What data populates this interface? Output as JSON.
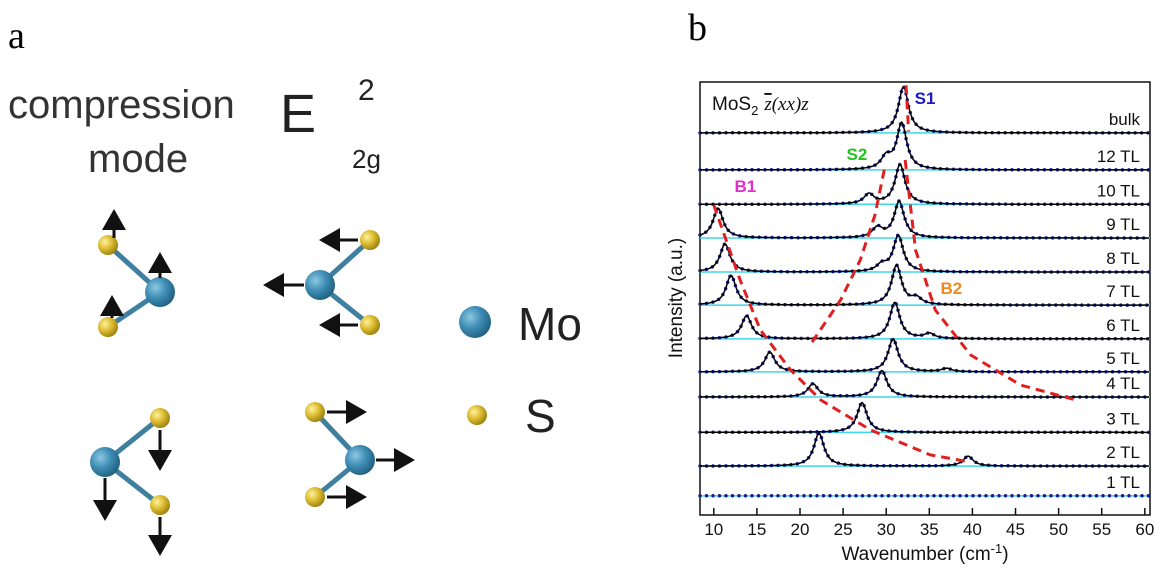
{
  "panel_a": {
    "label": "a",
    "mode_title": [
      "compression",
      "mode"
    ],
    "irrep": {
      "base": "E",
      "sup": "2",
      "sub": "2g"
    },
    "legend": [
      "Mo",
      "S"
    ]
  },
  "chart_data": {
    "type": "stacked-spectra",
    "panel_label": "b",
    "title": {
      "formula": "MoS",
      "formula_sub": "2",
      "geometry": "z",
      "geometry_rest": "(xx)z"
    },
    "xlabel": {
      "text": "Wavenumber (cm",
      "sup": "-1",
      "close": ")"
    },
    "ylabel": "Intensity (a.u.)",
    "xlim": [
      8.4,
      60.6
    ],
    "xticks": [
      10,
      15,
      20,
      25,
      30,
      35,
      40,
      45,
      50,
      55,
      60
    ],
    "ylim": [
      0,
      13.1
    ],
    "data_color": "#1c1c8f",
    "fit_color": "#000000",
    "baseline_color": "#3fd6e8",
    "series": [
      {
        "name": "bulk",
        "baseline": 11.56,
        "peaks": [
          32.0
        ],
        "heights": [
          1.4
        ]
      },
      {
        "name": "12 TL",
        "baseline": 10.44,
        "peaks": [
          30.0,
          31.8
        ],
        "heights": [
          0.35,
          1.4
        ]
      },
      {
        "name": "10 TL",
        "baseline": 9.4,
        "peaks": [
          28.0,
          31.6
        ],
        "heights": [
          0.3,
          1.2
        ]
      },
      {
        "name": "9 TL",
        "baseline": 8.38,
        "peaks": [
          10.5,
          29.0,
          31.5
        ],
        "heights": [
          0.9,
          0.3,
          1.1
        ]
      },
      {
        "name": "8 TL",
        "baseline": 7.35,
        "peaks": [
          11.3,
          29.5,
          31.4
        ],
        "heights": [
          0.85,
          0.2,
          1.1
        ]
      },
      {
        "name": "7 TL",
        "baseline": 6.35,
        "peaks": [
          12.0,
          31.2,
          33.5
        ],
        "heights": [
          0.9,
          1.2,
          0.2
        ]
      },
      {
        "name": "6 TL",
        "baseline": 5.33,
        "peaks": [
          13.8,
          31.0,
          35.0
        ],
        "heights": [
          0.7,
          1.1,
          0.15
        ]
      },
      {
        "name": "5 TL",
        "baseline": 4.33,
        "peaks": [
          16.5,
          30.8,
          37.0
        ],
        "heights": [
          0.6,
          1.0,
          0.1
        ]
      },
      {
        "name": "4 TL",
        "baseline": 3.57,
        "peaks": [
          21.5,
          29.5
        ],
        "heights": [
          0.4,
          0.8
        ]
      },
      {
        "name": "3 TL",
        "baseline": 2.5,
        "peaks": [
          27.2
        ],
        "heights": [
          0.9
        ]
      },
      {
        "name": "2 TL",
        "baseline": 1.48,
        "peaks": [
          22.2,
          39.5
        ],
        "heights": [
          1.0,
          0.3
        ]
      },
      {
        "name": "1 TL",
        "baseline": 0.58,
        "peaks": [],
        "heights": []
      }
    ],
    "guides": [
      {
        "name": "S1",
        "color": "#1a1acc",
        "x": [
          32.3,
          32.6
        ],
        "y": [
          13.0,
          11.6
        ]
      },
      {
        "name": "S2",
        "color": "#22c422",
        "x": [
          21.4,
          24.7,
          27.0,
          28.7,
          29.9
        ],
        "y": [
          5.23,
          6.5,
          7.72,
          9.08,
          10.6
        ]
      },
      {
        "name": "B1",
        "color": "#e030c8",
        "x": [
          10.0,
          13.05,
          15.4,
          18.9,
          22.4,
          28.2,
          35.1,
          39.8
        ],
        "y": [
          9.38,
          7.11,
          5.6,
          4.39,
          3.48,
          2.57,
          1.82,
          1.6
        ]
      },
      {
        "name": "B2",
        "color": "#f08a1e",
        "x": [
          32.2,
          33.4,
          35.7,
          39.8,
          45.6,
          52.0
        ],
        "y": [
          10.74,
          8.02,
          6.2,
          4.84,
          3.93,
          3.48
        ]
      }
    ],
    "guide_color": "#e02020"
  }
}
